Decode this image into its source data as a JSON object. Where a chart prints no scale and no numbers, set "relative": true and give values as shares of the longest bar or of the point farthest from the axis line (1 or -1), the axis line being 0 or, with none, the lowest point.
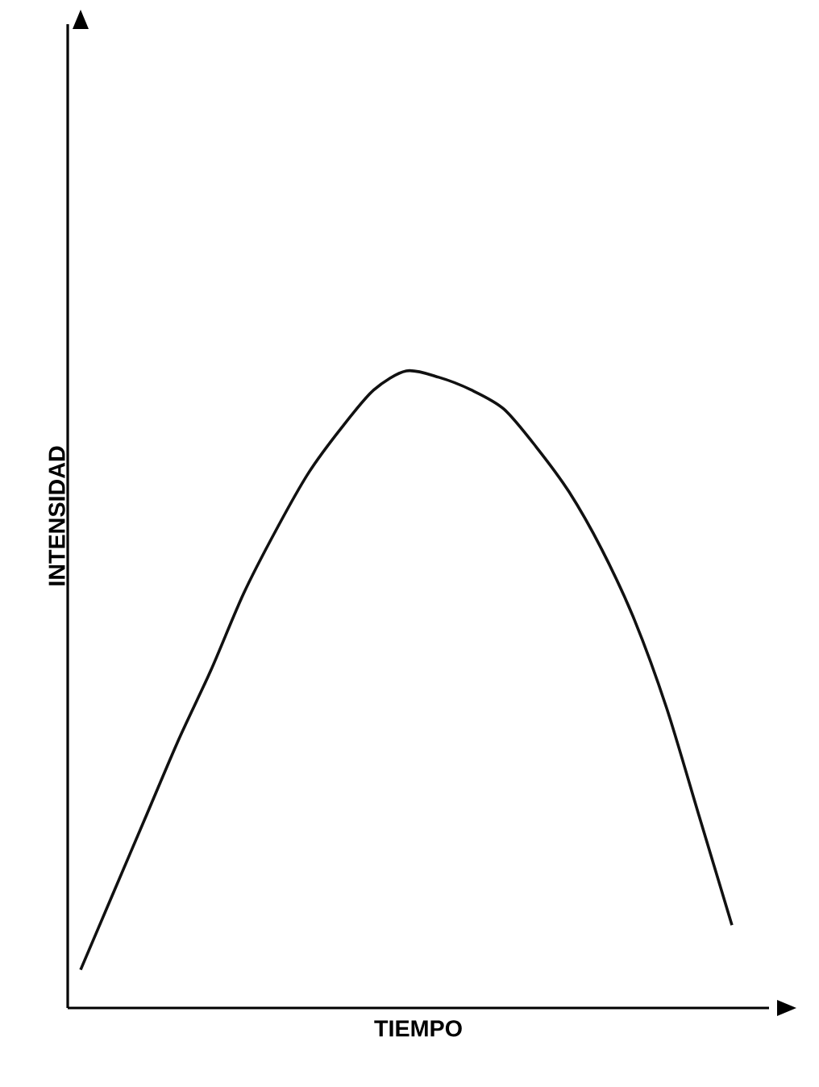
{
  "chart_data": {
    "type": "line",
    "relative": true,
    "xlabel": "TIEMPO",
    "ylabel": "INTENSIDAD",
    "color": "#111111",
    "categories": [
      null,
      null,
      null,
      null,
      null,
      null,
      null,
      null,
      null,
      null,
      null,
      null,
      null,
      null,
      null,
      null,
      null,
      null,
      null,
      null,
      null
    ],
    "values": [
      0.06,
      0.18,
      0.3,
      0.42,
      0.53,
      0.65,
      0.75,
      0.84,
      0.91,
      0.97,
      1.0,
      0.99,
      0.97,
      0.94,
      0.88,
      0.81,
      0.72,
      0.61,
      0.47,
      0.3,
      0.13
    ]
  }
}
